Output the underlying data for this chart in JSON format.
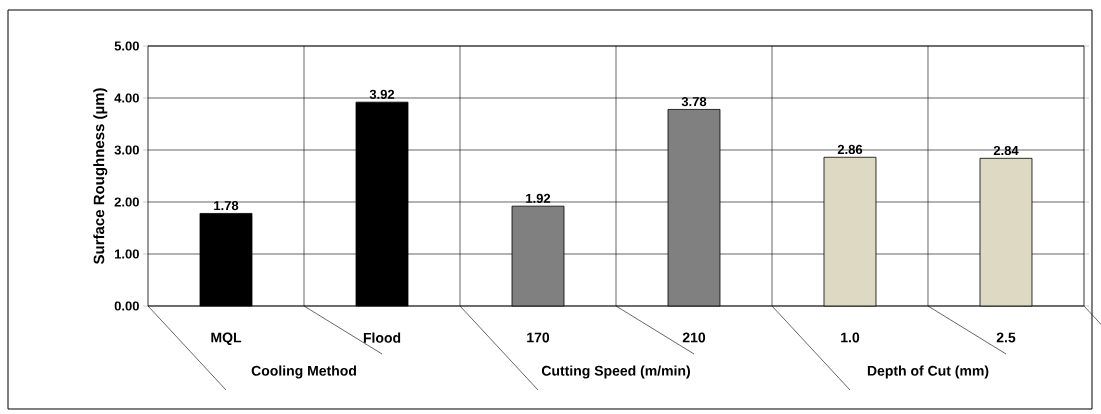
{
  "chart_data": {
    "type": "bar",
    "ylabel": "Surface Roughness (µm)",
    "categories": [
      "MQL",
      "Flood",
      "170",
      "210",
      "1.0",
      "2.5"
    ],
    "values": [
      1.78,
      3.92,
      1.92,
      3.78,
      2.86,
      2.84
    ],
    "colors": [
      "#000000",
      "#000000",
      "#808080",
      "#808080",
      "#ddd9c3",
      "#ddd9c3"
    ],
    "ylim": [
      0,
      5
    ],
    "yticks": [
      {
        "value": 0,
        "label": "0.00"
      },
      {
        "value": 1,
        "label": "1.00"
      },
      {
        "value": 2,
        "label": "2.00"
      },
      {
        "value": 3,
        "label": "3.00"
      },
      {
        "value": 4,
        "label": "4.00"
      },
      {
        "value": 5,
        "label": "5.00"
      }
    ],
    "grid": true,
    "data_labels": true,
    "annotations": [
      "Cooling Method",
      "Cutting Speed (m/min)",
      "Depth of Cut (mm)"
    ]
  }
}
